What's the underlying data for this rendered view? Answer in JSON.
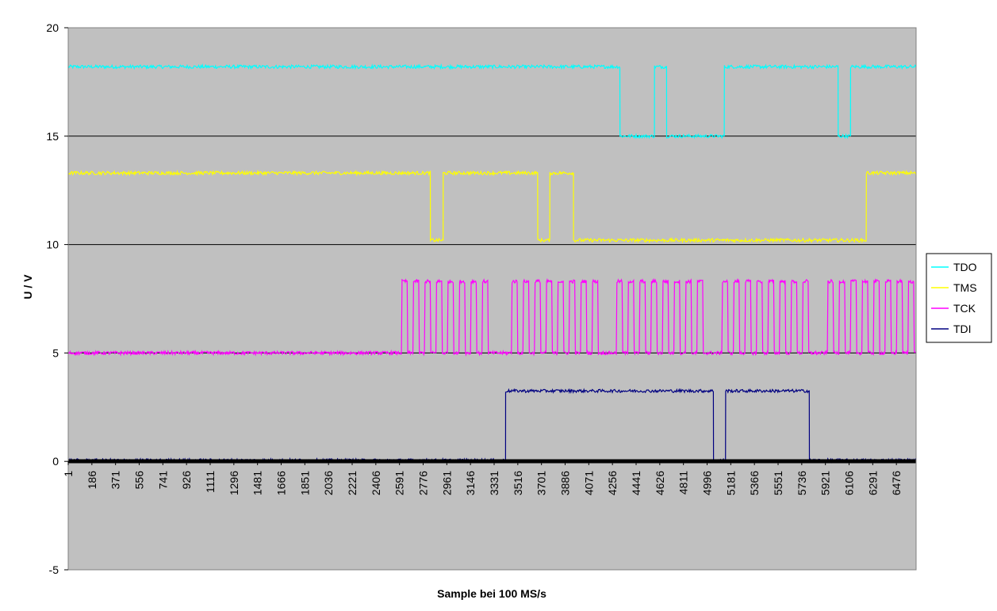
{
  "chart_data": {
    "type": "line",
    "title": "",
    "xlabel": "Sample bei 100 MS/s",
    "ylabel": "U / V",
    "ylim": [
      -5,
      20
    ],
    "y_ticks": [
      -5,
      0,
      5,
      10,
      15,
      20
    ],
    "x_range": [
      1,
      6630
    ],
    "x_tick_labels": [
      "1",
      "186",
      "371",
      "556",
      "741",
      "926",
      "1111",
      "1296",
      "1481",
      "1666",
      "1851",
      "2036",
      "2221",
      "2406",
      "2591",
      "2776",
      "2961",
      "3146",
      "3331",
      "3516",
      "3701",
      "3886",
      "4071",
      "4256",
      "4441",
      "4626",
      "4811",
      "4996",
      "5181",
      "5366",
      "5551",
      "5736",
      "5921",
      "6106",
      "6291",
      "6476"
    ],
    "grid": "horizontal major",
    "plot_background": "#c0c0c0",
    "legend_position": "right",
    "series": [
      {
        "name": "TDO",
        "color": "#00ffff",
        "noise": 0.08,
        "segments": [
          [
            1,
            18.2
          ],
          [
            4315,
            15.0
          ],
          [
            4585,
            18.2
          ],
          [
            4680,
            15.0
          ],
          [
            5131,
            18.2
          ],
          [
            6021,
            15.0
          ],
          [
            6118,
            18.2
          ],
          [
            6630,
            18.2
          ]
        ]
      },
      {
        "name": "TMS",
        "color": "#ffff00",
        "noise": 0.08,
        "segments": [
          [
            1,
            13.3
          ],
          [
            2833,
            10.2
          ],
          [
            2933,
            13.3
          ],
          [
            3672,
            10.2
          ],
          [
            3767,
            13.3
          ],
          [
            3952,
            10.2
          ],
          [
            6241,
            13.3
          ],
          [
            6630,
            13.3
          ]
        ]
      },
      {
        "name": "TCK",
        "color": "#ff00ff",
        "noise": 0.08,
        "low": 5.0,
        "high": 8.3,
        "pulse_width": 45,
        "period": 90,
        "bursts": [
          {
            "start": 2611,
            "count": 8
          },
          {
            "start": 3471,
            "count": 8
          },
          {
            "start": 4291,
            "count": 8
          },
          {
            "start": 5116,
            "count": 8
          },
          {
            "start": 5941,
            "count": 8
          }
        ]
      },
      {
        "name": "TDI",
        "color": "#000080",
        "noise": 0.07,
        "segments": [
          [
            1,
            0.05
          ],
          [
            3421,
            3.25
          ],
          [
            5046,
            0.05
          ],
          [
            5141,
            3.25
          ],
          [
            5796,
            0.05
          ],
          [
            6630,
            0.05
          ]
        ]
      }
    ]
  }
}
